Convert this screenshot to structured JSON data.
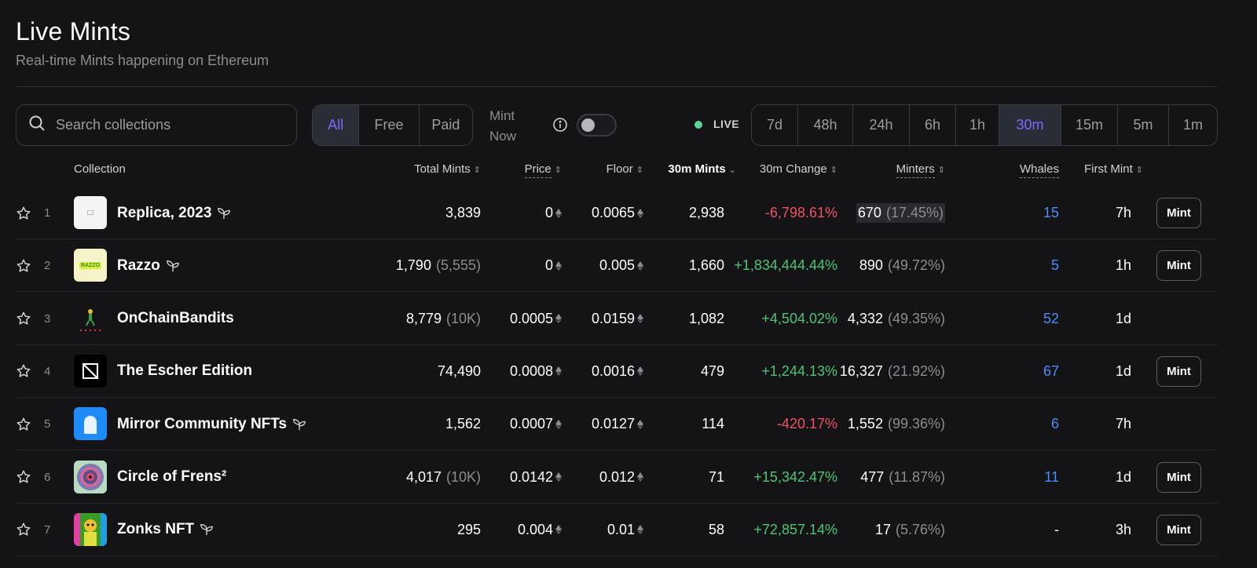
{
  "page": {
    "title": "Live Mints",
    "subtitle": "Real-time Mints happening on Ethereum"
  },
  "search": {
    "placeholder": "Search collections"
  },
  "filters": {
    "type_options": [
      "All",
      "Free",
      "Paid"
    ],
    "type_active": "All",
    "mint_now_label": "Mint Now",
    "mint_now_enabled": false,
    "live_label": "LIVE",
    "time_options": [
      "7d",
      "48h",
      "24h",
      "6h",
      "1h",
      "30m",
      "15m",
      "5m",
      "1m"
    ],
    "time_active": "30m"
  },
  "columns": {
    "collection": "Collection",
    "total_mints": "Total Mints",
    "price": "Price",
    "floor": "Floor",
    "period_mints": "30m Mints",
    "period_change": "30m Change",
    "minters": "Minters",
    "whales": "Whales",
    "first_mint": "First Mint"
  },
  "colors": {
    "accent": "#7c6cff",
    "positive": "#4cc477",
    "negative": "#f2506a",
    "whale_blue": "#4b8df8",
    "live": "#5bd39a"
  },
  "mint_label": "Mint",
  "rows": [
    {
      "rank": "1",
      "name": "Replica, 2023",
      "thumb": "replica-thumb",
      "sprout": true,
      "total": "3,839",
      "total_extra": "",
      "price": "0",
      "floor": "0.0065",
      "mints": "2,938",
      "change": "-6,798.61%",
      "change_dir": "neg",
      "minters": "670",
      "minters_pct": "(17.45%)",
      "whales": "15",
      "first_mint": "7h",
      "mint_button": true
    },
    {
      "rank": "2",
      "name": "Razzo",
      "thumb": "razzo-thumb",
      "thumb_text": "RAZZO",
      "sprout": true,
      "total": "1,790",
      "total_extra": "(5,555)",
      "price": "0",
      "floor": "0.005",
      "mints": "1,660",
      "change": "+1,834,444.44%",
      "change_dir": "pos",
      "minters": "890",
      "minters_pct": "(49.72%)",
      "whales": "5",
      "first_mint": "1h",
      "mint_button": true
    },
    {
      "rank": "3",
      "name": "OnChainBandits",
      "thumb": "bandit-thumb",
      "sprout": false,
      "total": "8,779",
      "total_extra": "(10K)",
      "price": "0.0005",
      "floor": "0.0159",
      "mints": "1,082",
      "change": "+4,504.02%",
      "change_dir": "pos",
      "minters": "4,332",
      "minters_pct": "(49.35%)",
      "whales": "52",
      "first_mint": "1d",
      "mint_button": false
    },
    {
      "rank": "4",
      "name": "The Escher Edition",
      "thumb": "escher-thumb",
      "sprout": false,
      "total": "74,490",
      "total_extra": "",
      "price": "0.0008",
      "floor": "0.0016",
      "mints": "479",
      "change": "+1,244.13%",
      "change_dir": "pos",
      "minters": "16,327",
      "minters_pct": "(21.92%)",
      "whales": "67",
      "first_mint": "1d",
      "mint_button": true
    },
    {
      "rank": "5",
      "name": "Mirror Community NFTs",
      "thumb": "mirror-thumb",
      "sprout": true,
      "total": "1,562",
      "total_extra": "",
      "price": "0.0007",
      "floor": "0.0127",
      "mints": "114",
      "change": "-420.17%",
      "change_dir": "neg",
      "minters": "1,552",
      "minters_pct": "(99.36%)",
      "whales": "6",
      "first_mint": "7h",
      "mint_button": false
    },
    {
      "rank": "6",
      "name": "Circle of Frens²",
      "thumb": "circle-thumb",
      "sprout": false,
      "total": "4,017",
      "total_extra": "(10K)",
      "price": "0.0142",
      "floor": "0.012",
      "mints": "71",
      "change": "+15,342.47%",
      "change_dir": "pos",
      "minters": "477",
      "minters_pct": "(11.87%)",
      "whales": "11",
      "first_mint": "1d",
      "mint_button": true
    },
    {
      "rank": "7",
      "name": "Zonks NFT",
      "thumb": "zonks-thumb",
      "sprout": true,
      "total": "295",
      "total_extra": "",
      "price": "0.004",
      "floor": "0.01",
      "mints": "58",
      "change": "+72,857.14%",
      "change_dir": "pos",
      "minters": "17",
      "minters_pct": "(5.76%)",
      "whales": "-",
      "first_mint": "3h",
      "mint_button": true
    }
  ]
}
